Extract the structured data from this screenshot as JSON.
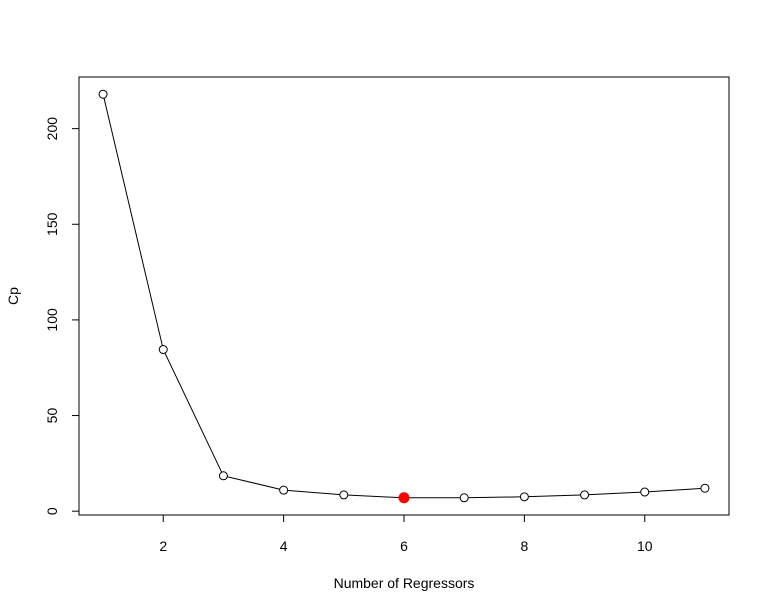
{
  "chart_data": {
    "type": "line",
    "title": "",
    "xlabel": "Number of Regressors",
    "ylabel": "Cp",
    "xlim": [
      0.6,
      11.4
    ],
    "ylim": [
      -2,
      227
    ],
    "x_ticks": [
      2,
      4,
      6,
      8,
      10
    ],
    "y_ticks": [
      0,
      50,
      100,
      150,
      200
    ],
    "grid": false,
    "legend": "none",
    "series": [
      {
        "x": [
          1,
          2,
          3,
          4,
          5,
          6,
          7,
          8,
          9,
          10,
          11
        ],
        "values": [
          218,
          84.5,
          18.5,
          11,
          8.5,
          7,
          7,
          7.5,
          8.5,
          10,
          12
        ]
      }
    ],
    "highlight": {
      "x": 6,
      "y": 7,
      "color": "#ff0000"
    },
    "colors": {
      "line": "#000000",
      "marker_fill": "#ffffff",
      "highlight": "#ff0000"
    }
  }
}
